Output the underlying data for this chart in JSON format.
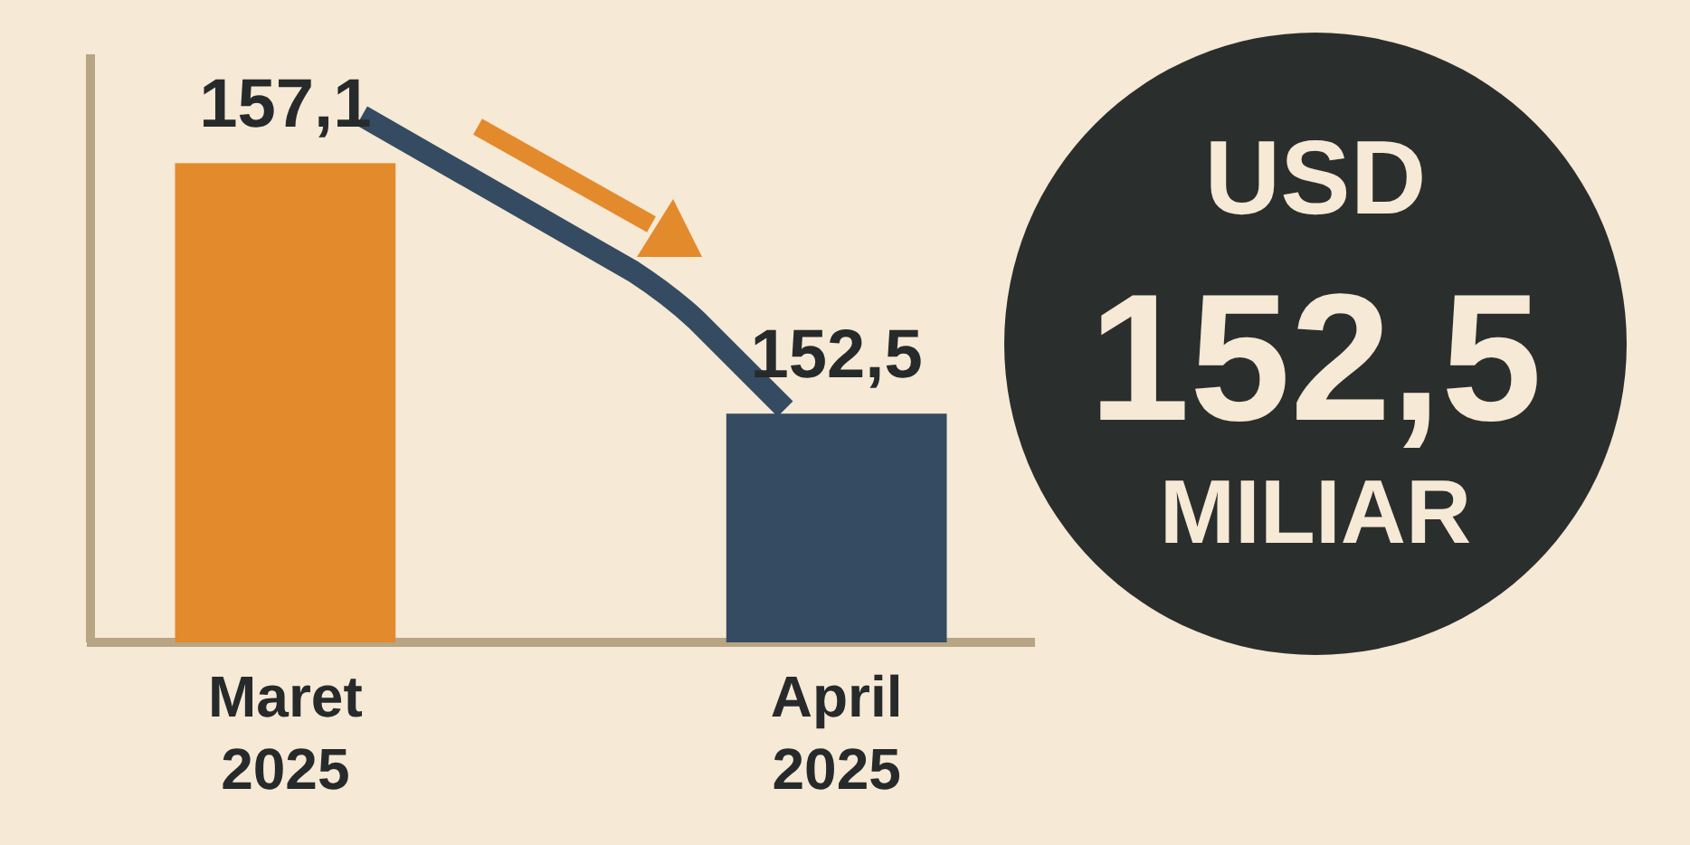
{
  "chart_data": {
    "type": "bar",
    "categories": [
      "Maret 2025",
      "April 2025"
    ],
    "values": [
      157.1,
      152.5
    ],
    "colors": [
      "#e38a2c",
      "#344b61"
    ],
    "value_labels": [
      "157,1",
      "152,5"
    ],
    "ylim": [
      148.3,
      159.1
    ],
    "tick_labels": "x",
    "annotations": [
      "USD",
      "152,5",
      "MILIAR"
    ]
  }
}
